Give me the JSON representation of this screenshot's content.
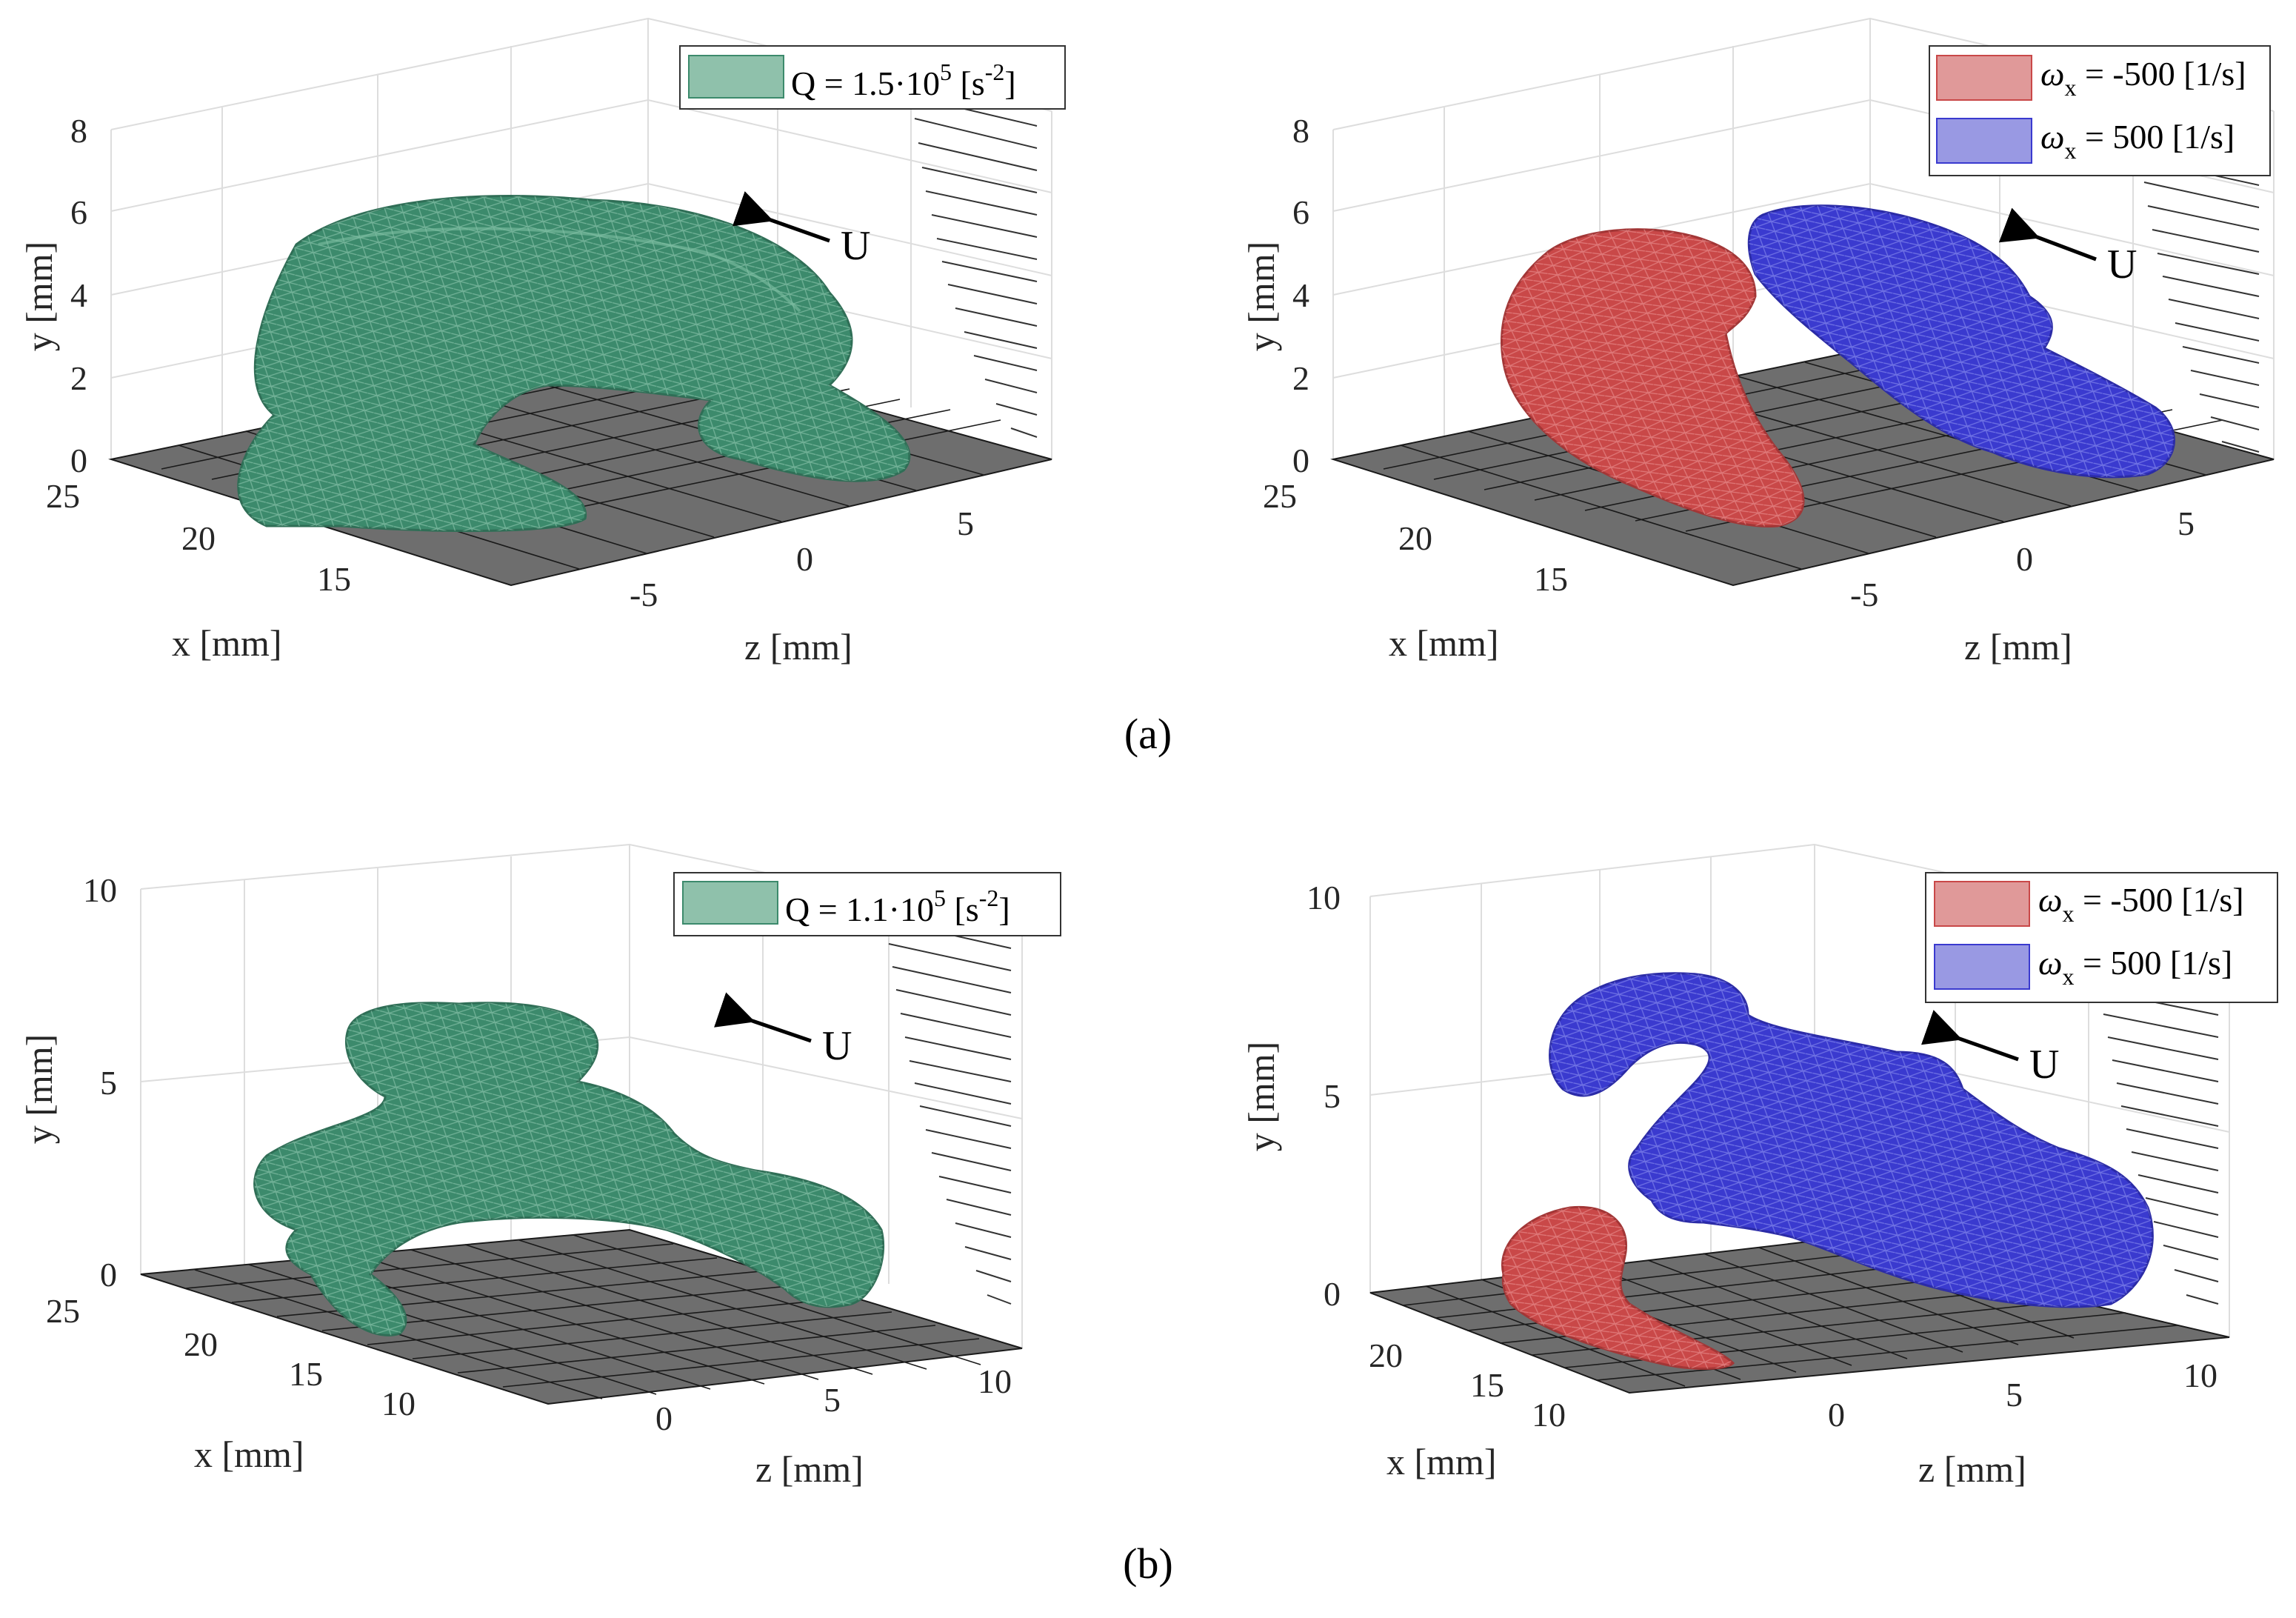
{
  "captions": {
    "a": "(a)",
    "b": "(b)"
  },
  "axis_labels": {
    "x": "x [mm]",
    "y": "y [mm]",
    "z": "z [mm]"
  },
  "flow_label": "U",
  "colors": {
    "green": "#3c8a6c",
    "red": "#c94848",
    "blue": "#3a3acf",
    "floor": "#6e6e6e"
  },
  "panels": [
    {
      "id": "a-left",
      "legend": [
        {
          "main": "Q = 1.5·10",
          "sup": "5",
          "tail": " [s",
          "tailsup": "-2",
          "end": "]",
          "color": "green"
        }
      ],
      "y_ticks": [
        "0",
        "2",
        "4",
        "6",
        "8"
      ],
      "x_ticks": [
        "25",
        "20",
        "15"
      ],
      "z_ticks": [
        "-5",
        "0",
        "5"
      ]
    },
    {
      "id": "a-right",
      "legend": [
        {
          "main": "ω",
          "sub": "x",
          "rest": " = -500 [1/s]",
          "color": "red"
        },
        {
          "main": "ω",
          "sub": "x",
          "rest": " = 500 [1/s]",
          "color": "blue"
        }
      ],
      "y_ticks": [
        "0",
        "2",
        "4",
        "6",
        "8"
      ],
      "x_ticks": [
        "25",
        "20",
        "15"
      ],
      "z_ticks": [
        "-5",
        "0",
        "5"
      ]
    },
    {
      "id": "b-left",
      "legend": [
        {
          "main": "Q = 1.1·10",
          "sup": "5",
          "tail": " [s",
          "tailsup": "-2",
          "end": "]",
          "color": "green"
        }
      ],
      "y_ticks": [
        "0",
        "5",
        "10"
      ],
      "x_ticks": [
        "25",
        "20",
        "15",
        "10"
      ],
      "z_ticks": [
        "0",
        "5",
        "10"
      ]
    },
    {
      "id": "b-right",
      "legend": [
        {
          "main": "ω",
          "sub": "x",
          "rest": " = -500 [1/s]",
          "color": "red"
        },
        {
          "main": "ω",
          "sub": "x",
          "rest": " = 500 [1/s]",
          "color": "blue"
        }
      ],
      "y_ticks": [
        "0",
        "5",
        "10"
      ],
      "x_ticks": [
        "20",
        "15",
        "10"
      ],
      "z_ticks": [
        "0",
        "5",
        "10"
      ]
    }
  ]
}
